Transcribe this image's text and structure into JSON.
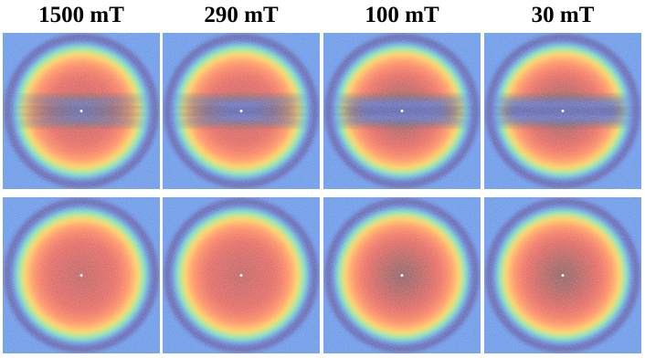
{
  "columns": [
    {
      "label": "1500 mT"
    },
    {
      "label": "290 mT"
    },
    {
      "label": "100 mT"
    },
    {
      "label": "30 mT"
    }
  ]
}
